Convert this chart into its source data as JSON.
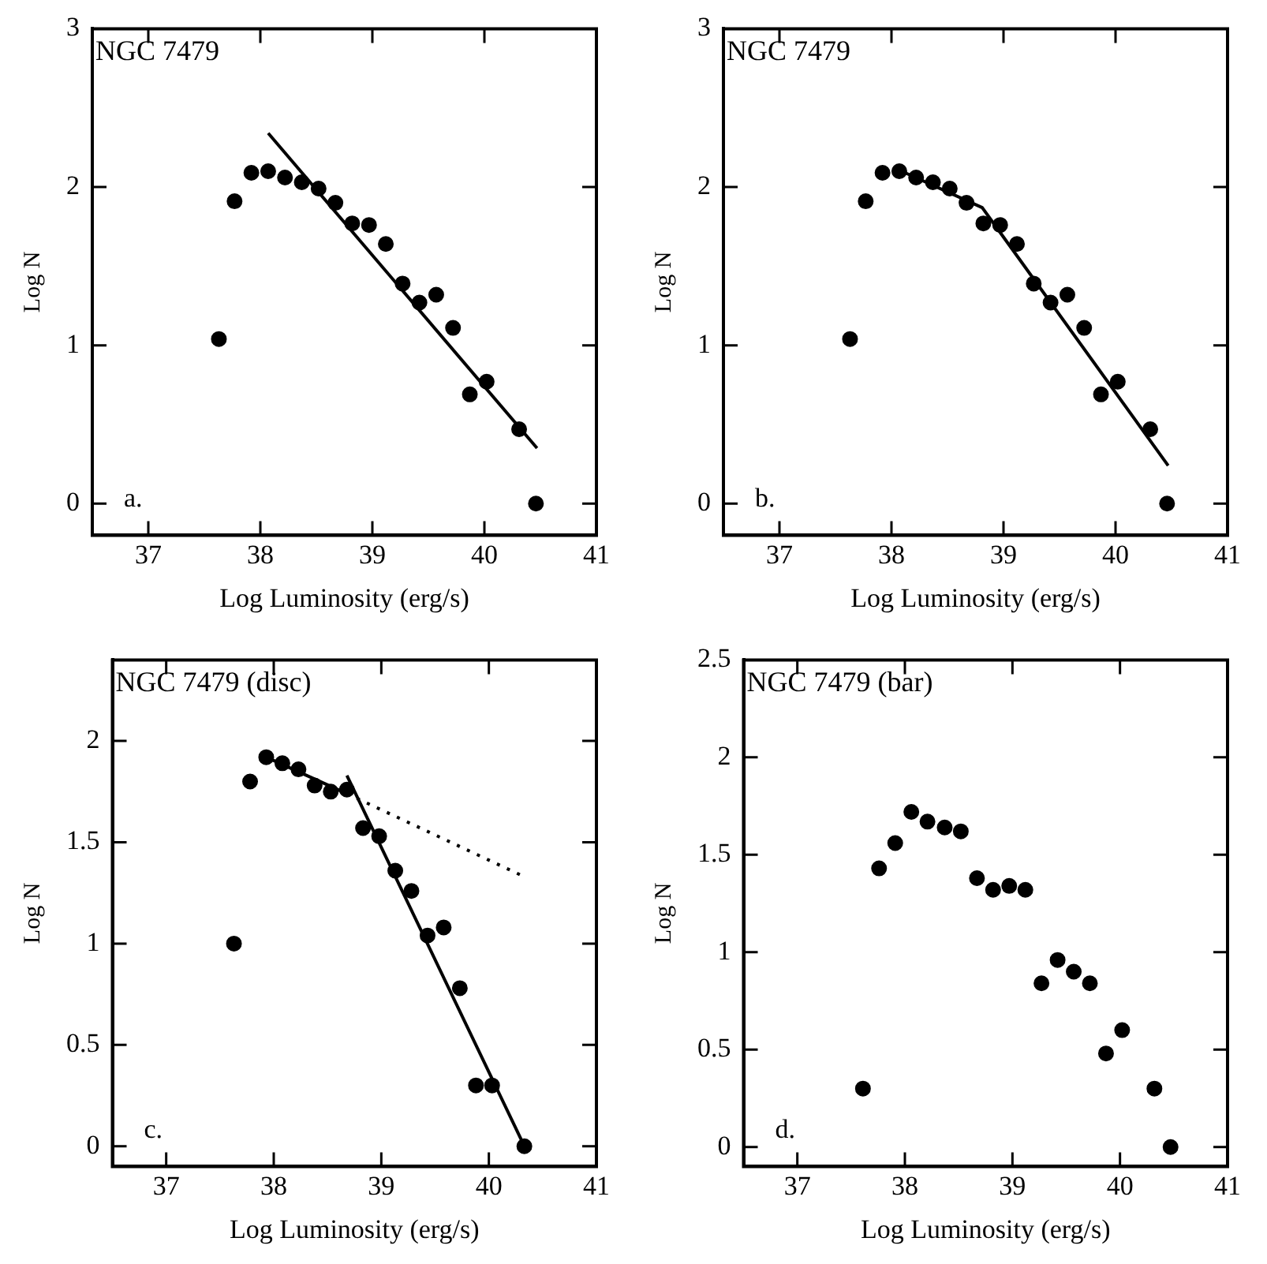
{
  "chart_data": [
    {
      "type": "scatter",
      "title": "NGC 7479",
      "xlabel": "Log Luminosity (erg/s)",
      "ylabel": "Log N",
      "xlim": [
        36.5,
        41
      ],
      "xticks": [
        37,
        38,
        39,
        40,
        41
      ],
      "ylim": [
        -0.2,
        3
      ],
      "yticks": [
        0,
        1,
        2,
        3
      ],
      "grid": false,
      "annotations": [
        "a."
      ],
      "series": [
        {
          "marker": "circle",
          "color": "#000000",
          "x": [
            37.63,
            37.77,
            37.92,
            38.07,
            38.22,
            38.37,
            38.52,
            38.67,
            38.82,
            38.97,
            39.12,
            39.27,
            39.42,
            39.57,
            39.72,
            39.87,
            40.02,
            40.31,
            40.46
          ],
          "values": [
            1.04,
            1.91,
            2.09,
            2.1,
            2.06,
            2.03,
            1.99,
            1.9,
            1.77,
            1.76,
            1.64,
            1.39,
            1.27,
            1.32,
            1.11,
            0.69,
            0.77,
            0.47,
            0.0
          ]
        },
        {
          "type": "line",
          "marker": "none",
          "color": "#000000",
          "line_style": "solid",
          "x": [
            38.07,
            40.47
          ],
          "values": [
            2.34,
            0.35
          ]
        }
      ]
    },
    {
      "type": "scatter",
      "title": "NGC 7479",
      "xlabel": "Log Luminosity (erg/s)",
      "ylabel": "Log N",
      "xlim": [
        36.5,
        41
      ],
      "xticks": [
        37,
        38,
        39,
        40,
        41
      ],
      "ylim": [
        -0.2,
        3
      ],
      "yticks": [
        0,
        1,
        2,
        3
      ],
      "grid": false,
      "annotations": [
        "b."
      ],
      "series": [
        {
          "marker": "circle",
          "color": "#000000",
          "x": [
            37.63,
            37.77,
            37.92,
            38.07,
            38.22,
            38.37,
            38.52,
            38.67,
            38.82,
            38.97,
            39.12,
            39.27,
            39.42,
            39.57,
            39.72,
            39.87,
            40.02,
            40.31,
            40.46
          ],
          "values": [
            1.04,
            1.91,
            2.09,
            2.1,
            2.06,
            2.03,
            1.99,
            1.9,
            1.77,
            1.76,
            1.64,
            1.39,
            1.27,
            1.32,
            1.11,
            0.69,
            0.77,
            0.47,
            0.0
          ]
        },
        {
          "type": "line",
          "marker": "none",
          "color": "#000000",
          "line_style": "solid",
          "x": [
            38.06,
            38.81,
            40.47
          ],
          "values": [
            2.11,
            1.87,
            0.24
          ]
        }
      ]
    },
    {
      "type": "scatter",
      "title": "NGC 7479 (disc)",
      "xlabel": "Log Luminosity (erg/s)",
      "ylabel": "Log N",
      "xlim": [
        36.5,
        41
      ],
      "xticks": [
        37,
        38,
        39,
        40,
        41
      ],
      "ylim": [
        -0.1,
        2.4
      ],
      "yticks": [
        0,
        0.5,
        1,
        1.5,
        2
      ],
      "grid": false,
      "annotations": [
        "c."
      ],
      "series": [
        {
          "marker": "circle",
          "color": "#000000",
          "x": [
            37.63,
            37.78,
            37.93,
            38.08,
            38.23,
            38.38,
            38.53,
            38.68,
            38.83,
            38.98,
            39.13,
            39.28,
            39.43,
            39.58,
            39.73,
            39.88,
            40.03,
            40.33
          ],
          "values": [
            1.0,
            1.8,
            1.92,
            1.89,
            1.86,
            1.78,
            1.75,
            1.76,
            1.57,
            1.53,
            1.36,
            1.26,
            1.04,
            1.08,
            0.78,
            0.3,
            0.3,
            0.0
          ]
        },
        {
          "type": "line",
          "marker": "none",
          "color": "#000000",
          "line_style": "solid",
          "x": [
            37.93,
            38.68
          ],
          "values": [
            1.92,
            1.74
          ]
        },
        {
          "type": "line",
          "marker": "none",
          "color": "#000000",
          "line_style": "dotted",
          "x": [
            38.68,
            40.33
          ],
          "values": [
            1.74,
            1.33
          ]
        },
        {
          "type": "line",
          "marker": "none",
          "color": "#000000",
          "line_style": "solid",
          "x": [
            38.68,
            40.33
          ],
          "values": [
            1.83,
            0.0
          ]
        }
      ]
    },
    {
      "type": "scatter",
      "title": "NGC 7479 (bar)",
      "xlabel": "Log Luminosity (erg/s)",
      "ylabel": "Log N",
      "xlim": [
        36.5,
        41
      ],
      "xticks": [
        37,
        38,
        39,
        40,
        41
      ],
      "ylim": [
        -0.1,
        2.5
      ],
      "yticks": [
        0,
        0.5,
        1,
        1.5,
        2,
        2.5
      ],
      "grid": false,
      "annotations": [
        "d."
      ],
      "series": [
        {
          "marker": "circle",
          "color": "#000000",
          "x": [
            37.61,
            37.76,
            37.91,
            38.06,
            38.21,
            38.37,
            38.52,
            38.67,
            38.82,
            38.97,
            39.12,
            39.27,
            39.42,
            39.57,
            39.72,
            39.87,
            40.02,
            40.32,
            40.47
          ],
          "values": [
            0.3,
            1.43,
            1.56,
            1.72,
            1.67,
            1.64,
            1.62,
            1.38,
            1.32,
            1.34,
            1.32,
            0.84,
            0.96,
            0.9,
            0.84,
            0.48,
            0.6,
            0.3,
            0.0
          ]
        }
      ]
    }
  ]
}
